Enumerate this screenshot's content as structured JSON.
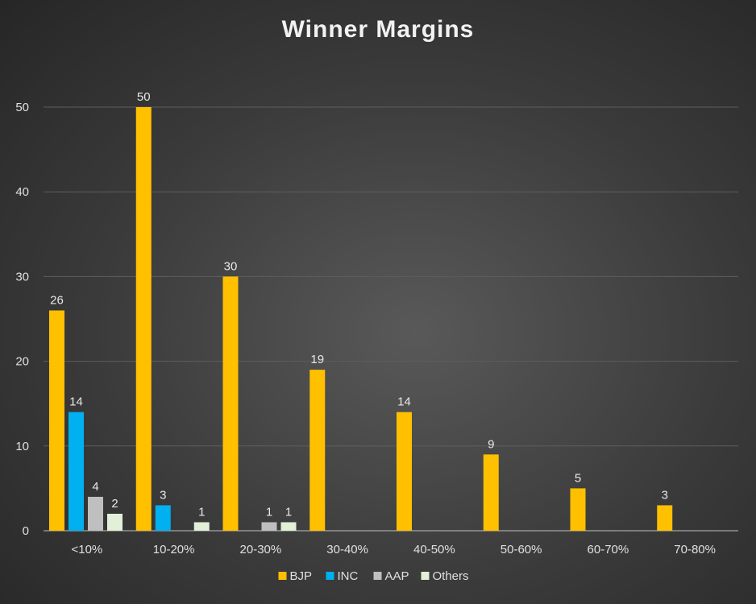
{
  "chart_data": {
    "type": "bar",
    "title": "Winner Margins",
    "categories": [
      "<10%",
      "10-20%",
      "20-30%",
      "30-40%",
      "40-50%",
      "50-60%",
      "60-70%",
      "70-80%"
    ],
    "series": [
      {
        "name": "BJP",
        "color": "#FFC000",
        "values": [
          26,
          50,
          30,
          19,
          14,
          9,
          5,
          3
        ]
      },
      {
        "name": "INC",
        "color": "#00B0F0",
        "values": [
          14,
          3,
          null,
          null,
          null,
          null,
          null,
          null
        ]
      },
      {
        "name": "AAP",
        "color": "#BFBFBF",
        "values": [
          4,
          null,
          1,
          null,
          null,
          null,
          null,
          null
        ]
      },
      {
        "name": "Others",
        "color": "#E2F0D9",
        "values": [
          2,
          1,
          1,
          null,
          null,
          null,
          null,
          null
        ]
      }
    ],
    "ylim": [
      0,
      50
    ],
    "yticks": [
      0,
      10,
      20,
      30,
      40,
      50
    ],
    "grid": true,
    "legend_position": "bottom",
    "data_labels": true
  }
}
